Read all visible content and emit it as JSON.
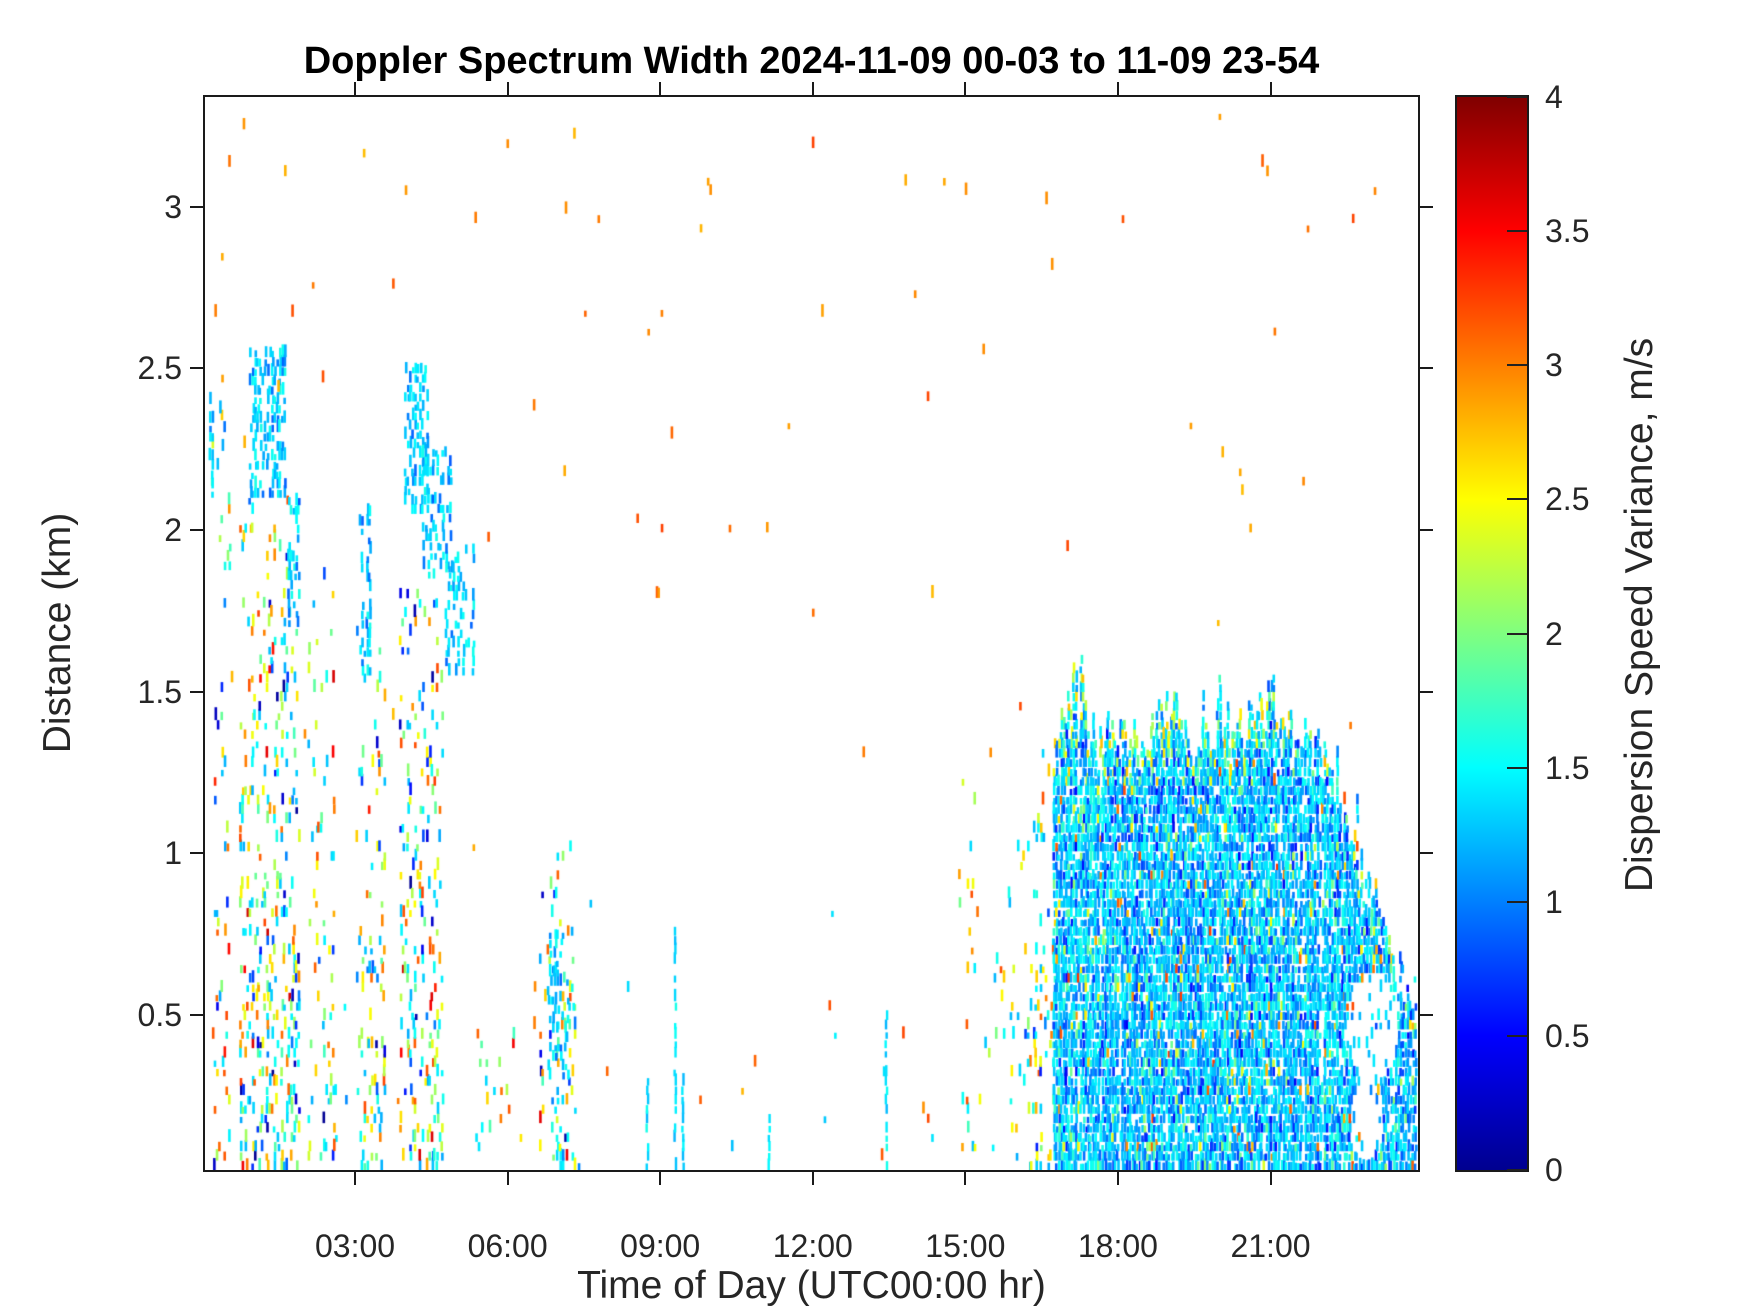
{
  "chart": {
    "title": "Doppler Spectrum Width 2024-11-09 00-03 to 11-09 23-54",
    "xlabel": "Time of Day (UTC00:00 hr)",
    "ylabel": "Distance (km)",
    "colorbar_label": "Dispersion Speed Variance, m/s"
  },
  "chart_data": {
    "type": "heatmap",
    "title": "Doppler Spectrum Width 2024-11-09 00-03 to 11-09 23-54",
    "xlabel": "Time of Day (UTC00:00 hr)",
    "ylabel": "Distance (km)",
    "colorbar_label": "Dispersion Speed Variance, m/s",
    "date_range": {
      "date": "2024-11-09",
      "start": "00-03",
      "end": "23-54"
    },
    "xlim": [
      0.05,
      23.9
    ],
    "ylim": [
      0.02,
      3.34
    ],
    "clim": [
      0,
      4
    ],
    "xticks": {
      "values": [
        3,
        6,
        9,
        12,
        15,
        18,
        21
      ],
      "labels": [
        "03:00",
        "06:00",
        "09:00",
        "12:00",
        "15:00",
        "18:00",
        "21:00"
      ]
    },
    "yticks": {
      "values": [
        0.5,
        1,
        1.5,
        2,
        2.5,
        3
      ],
      "labels": [
        "0.5",
        "1",
        "1.5",
        "2",
        "2.5",
        "3"
      ]
    },
    "colorbar_ticks": {
      "values": [
        0,
        0.5,
        1,
        1.5,
        2,
        2.5,
        3,
        3.5,
        4
      ],
      "labels": [
        "0",
        "0.5",
        "1",
        "1.5",
        "2",
        "2.5",
        "3",
        "3.5",
        "4"
      ]
    },
    "colormap": "jet",
    "colormap_stops": [
      [
        0,
        "#00008f"
      ],
      [
        0.125,
        "#0000ff"
      ],
      [
        0.375,
        "#00ffff"
      ],
      [
        0.625,
        "#ffff00"
      ],
      [
        0.875,
        "#ff0000"
      ],
      [
        1,
        "#800000"
      ]
    ],
    "background_color": "#ffffff",
    "grid": false,
    "seed": 20241109,
    "mark": {
      "w": 2.6,
      "hmin": 6,
      "hmax": 13
    },
    "grid_step": {
      "dt": 0.048,
      "dd": 0.029
    },
    "palettes": {
      "mixed": [
        [
          1.15,
          1.65,
          0.34
        ],
        [
          1.75,
          2.25,
          0.18
        ],
        [
          2.3,
          2.7,
          0.17
        ],
        [
          2.75,
          3.25,
          0.14
        ],
        [
          0.55,
          1.05,
          0.09
        ],
        [
          0.05,
          0.45,
          0.05
        ],
        [
          3.35,
          3.7,
          0.03
        ]
      ],
      "cyan": [
        [
          1.15,
          1.6,
          0.85
        ],
        [
          0.85,
          1.15,
          0.15
        ]
      ],
      "orange": [
        [
          2.75,
          3.25,
          1.0
        ]
      ],
      "premass": [
        [
          2.3,
          2.75,
          0.25
        ],
        [
          2.75,
          3.2,
          0.15
        ],
        [
          1.15,
          1.65,
          0.4
        ],
        [
          1.75,
          2.25,
          0.1
        ],
        [
          0.6,
          1.1,
          0.1
        ]
      ],
      "mass": [
        [
          1.15,
          1.55,
          0.6
        ],
        [
          0.8,
          1.15,
          0.24
        ],
        [
          0.5,
          0.8,
          0.07
        ],
        [
          1.6,
          2.1,
          0.05
        ],
        [
          2.2,
          2.7,
          0.025
        ],
        [
          2.75,
          3.3,
          0.015
        ]
      ],
      "fringe": [
        [
          1.7,
          2.3,
          0.5
        ],
        [
          2.3,
          2.8,
          0.3
        ],
        [
          1.2,
          1.7,
          0.2
        ]
      ]
    },
    "regions": [
      {
        "name": "dawn-col-1",
        "t": [
          0.2,
          0.55
        ],
        "d": [
          0.02,
          2.4
        ],
        "density": 0.07,
        "palette": "mixed",
        "grad": true
      },
      {
        "name": "dawn-cyan-a",
        "t": [
          0.15,
          0.45
        ],
        "d": [
          2.1,
          2.4
        ],
        "density": 0.28,
        "palette": "cyan"
      },
      {
        "name": "dawn-col-2",
        "t": [
          0.75,
          1.95
        ],
        "d": [
          0.02,
          2.1
        ],
        "density": 0.16,
        "palette": "mixed",
        "grad": true
      },
      {
        "name": "dawn-cyan-blob",
        "t": [
          0.95,
          1.65
        ],
        "d": [
          2.1,
          2.55
        ],
        "density": 0.5,
        "palette": "cyan"
      },
      {
        "name": "dawn-cyan-streak",
        "t": [
          1.7,
          1.9
        ],
        "d": [
          1.7,
          2.1
        ],
        "density": 0.4,
        "palette": "cyan"
      },
      {
        "name": "dawn-col-3",
        "t": [
          2.1,
          2.65
        ],
        "d": [
          0.02,
          1.9
        ],
        "density": 0.1,
        "palette": "mixed",
        "grad": true
      },
      {
        "name": "col-0300",
        "t": [
          3.05,
          3.6
        ],
        "d": [
          0.02,
          1.75
        ],
        "density": 0.14,
        "palette": "mixed",
        "grad": true
      },
      {
        "name": "streak-0310",
        "t": [
          3.1,
          3.3
        ],
        "d": [
          1.55,
          2.1
        ],
        "density": 0.4,
        "palette": "cyan"
      },
      {
        "name": "col-0400",
        "t": [
          3.9,
          4.75
        ],
        "d": [
          0.02,
          1.8
        ],
        "density": 0.15,
        "palette": "mixed",
        "grad": true
      },
      {
        "name": "cyan-diag-1",
        "t": [
          4.0,
          4.45
        ],
        "d": [
          2.05,
          2.5
        ],
        "density": 0.45,
        "palette": "cyan"
      },
      {
        "name": "cyan-diag-2",
        "t": [
          4.35,
          4.9
        ],
        "d": [
          1.85,
          2.25
        ],
        "density": 0.4,
        "palette": "cyan"
      },
      {
        "name": "cyan-diag-3",
        "t": [
          4.8,
          5.35
        ],
        "d": [
          1.55,
          1.95
        ],
        "density": 0.35,
        "palette": "cyan"
      },
      {
        "name": "sparse-0530",
        "t": [
          5.4,
          6.3
        ],
        "d": [
          0.02,
          0.5
        ],
        "density": 0.05,
        "palette": "mixed"
      },
      {
        "name": "col-0700",
        "t": [
          6.65,
          7.35
        ],
        "d": [
          0.02,
          1.05
        ],
        "density": 0.13,
        "palette": "mixed",
        "grad": true
      },
      {
        "name": "col-0700-cyan",
        "t": [
          6.8,
          7.2
        ],
        "d": [
          0.3,
          0.75
        ],
        "density": 0.3,
        "palette": "cyan"
      },
      {
        "name": "sparse-orange-global",
        "t": [
          0.1,
          23.85
        ],
        "d": [
          0.05,
          3.28
        ],
        "density": 0.0018,
        "palette": "orange"
      },
      {
        "name": "sparse-cyan-midday",
        "t": [
          2.5,
          16.5
        ],
        "d": [
          0.02,
          0.9
        ],
        "density": 0.003,
        "palette": "cyan"
      },
      {
        "name": "premass-sparse",
        "t": [
          14.9,
          16.4
        ],
        "d": [
          0.02,
          1.25
        ],
        "density": 0.035,
        "palette": "premass",
        "grad": true
      },
      {
        "name": "premass-edge",
        "t": [
          16.3,
          16.78
        ],
        "d": [
          0.02,
          1.35
        ],
        "density": 0.12,
        "palette": "premass",
        "grad": true
      }
    ],
    "streaks": [
      {
        "t": 8.75,
        "d": [
          0.02,
          0.3
        ]
      },
      {
        "t": 9.3,
        "d": [
          0.02,
          0.75
        ]
      },
      {
        "t": 9.45,
        "d": [
          0.02,
          0.3
        ]
      },
      {
        "t": 11.15,
        "d": [
          0.02,
          0.22
        ]
      },
      {
        "t": 13.45,
        "d": [
          0.02,
          0.5
        ]
      }
    ],
    "mass": {
      "t": [
        16.75,
        23.9
      ],
      "base_density": 0.93,
      "palette": "mass",
      "fringe_palette": "fringe",
      "top_profile": [
        [
          16.75,
          1.28
        ],
        [
          17.0,
          1.38
        ],
        [
          17.3,
          1.5
        ],
        [
          17.6,
          1.3
        ],
        [
          18.0,
          1.35
        ],
        [
          18.5,
          1.28
        ],
        [
          19.0,
          1.42
        ],
        [
          19.5,
          1.3
        ],
        [
          20.0,
          1.38
        ],
        [
          20.5,
          1.32
        ],
        [
          21.0,
          1.42
        ],
        [
          21.5,
          1.3
        ],
        [
          21.9,
          1.32
        ],
        [
          22.3,
          1.12
        ],
        [
          22.7,
          0.95
        ],
        [
          23.1,
          0.8
        ],
        [
          23.4,
          0.65
        ],
        [
          23.65,
          0.55
        ],
        [
          23.9,
          0.55
        ]
      ],
      "holes": [
        [
          23.0,
          0.45,
          0.5,
          0.17
        ],
        [
          22.9,
          0.16,
          0.33,
          0.13
        ]
      ]
    }
  }
}
